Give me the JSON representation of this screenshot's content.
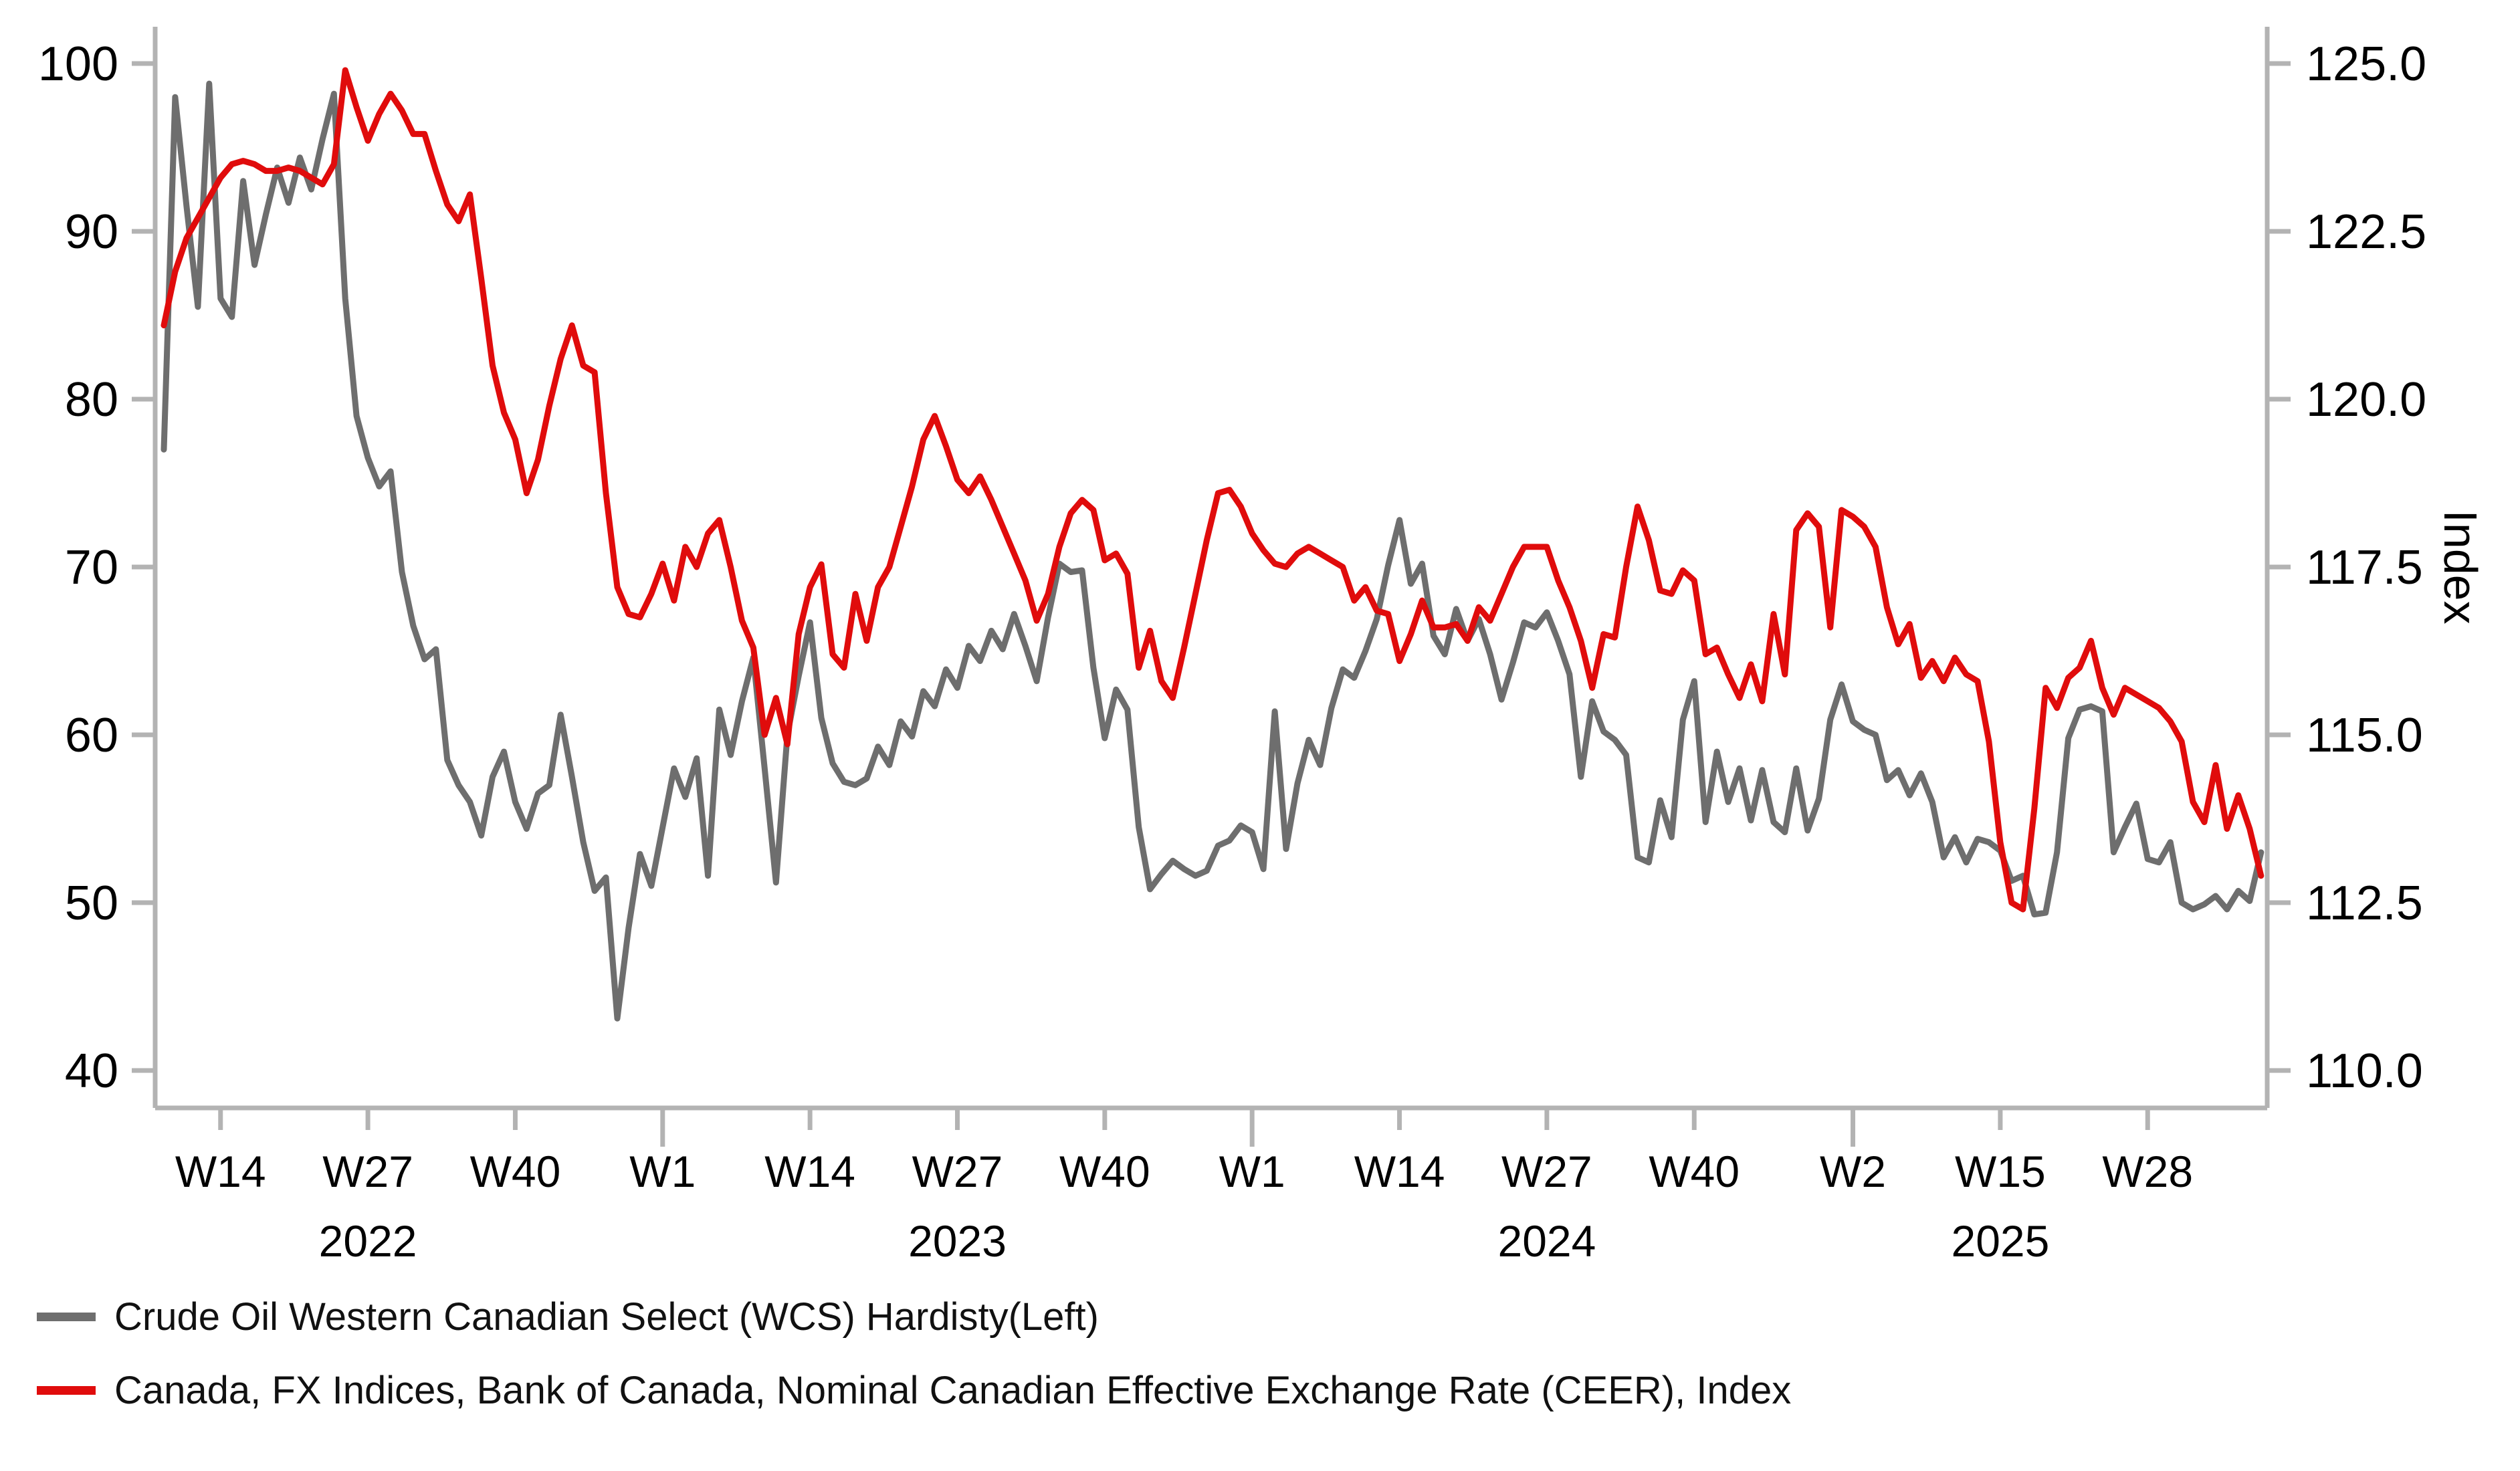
{
  "chart_data": {
    "type": "line",
    "title": "",
    "grid": false,
    "legend_position": "bottom-left",
    "x_axis": {
      "unit": "ISO week",
      "start_week_cont": 9,
      "weeks_total": 186,
      "ticks": [
        {
          "label": "W14",
          "cont": 14,
          "year_boundary": false
        },
        {
          "label": "W27",
          "cont": 27,
          "year_boundary": false
        },
        {
          "label": "W40",
          "cont": 40,
          "year_boundary": false
        },
        {
          "label": "W1",
          "cont": 53,
          "year_boundary": true
        },
        {
          "label": "W14",
          "cont": 66,
          "year_boundary": false
        },
        {
          "label": "W27",
          "cont": 79,
          "year_boundary": false
        },
        {
          "label": "W40",
          "cont": 92,
          "year_boundary": false
        },
        {
          "label": "W1",
          "cont": 105,
          "year_boundary": true
        },
        {
          "label": "W14",
          "cont": 118,
          "year_boundary": false
        },
        {
          "label": "W27",
          "cont": 131,
          "year_boundary": false
        },
        {
          "label": "W40",
          "cont": 144,
          "year_boundary": false
        },
        {
          "label": "W2",
          "cont": 158,
          "year_boundary": true
        },
        {
          "label": "W15",
          "cont": 171,
          "year_boundary": false
        },
        {
          "label": "W28",
          "cont": 184,
          "year_boundary": false
        }
      ],
      "year_labels": [
        {
          "text": "2022",
          "cont": 27
        },
        {
          "text": "2023",
          "cont": 79
        },
        {
          "text": "2024",
          "cont": 131
        },
        {
          "text": "2025",
          "cont": 171
        }
      ]
    },
    "y_left": {
      "title": "",
      "min": 40,
      "max": 100,
      "ticks": [
        100,
        90,
        80,
        70,
        60,
        50,
        40
      ]
    },
    "y_right": {
      "title": "Index",
      "min": 110,
      "max": 125,
      "ticks": [
        "125.0",
        "122.5",
        "120.0",
        "117.5",
        "115.0",
        "112.5",
        "110.0"
      ]
    },
    "axis_color": "#b3b3b3",
    "series": [
      {
        "name": "WCS",
        "legend_label": "Crude Oil Western Canadian Select (WCS) Hardisty(Left)",
        "color": "#6e6e6e",
        "axis": "left",
        "values": [
          77.0,
          98.0,
          91.5,
          85.5,
          98.8,
          86.0,
          84.9,
          93.0,
          88.0,
          91.0,
          93.8,
          91.7,
          94.4,
          92.5,
          95.5,
          98.2,
          86.0,
          79.0,
          76.5,
          74.8,
          75.7,
          69.7,
          66.5,
          64.5,
          65.1,
          58.5,
          57.0,
          56.0,
          54.0,
          57.5,
          59.0,
          56.0,
          54.4,
          56.5,
          57.0,
          61.2,
          57.5,
          53.6,
          50.7,
          51.5,
          43.1,
          48.5,
          52.9,
          51.0,
          54.5,
          58.0,
          56.3,
          58.6,
          51.6,
          61.5,
          58.8,
          62.0,
          64.6,
          58.0,
          51.2,
          60.0,
          63.5,
          66.7,
          61.0,
          58.3,
          57.2,
          57.0,
          57.4,
          59.3,
          58.2,
          60.8,
          59.9,
          62.6,
          61.7,
          63.9,
          62.8,
          65.3,
          64.4,
          66.2,
          65.1,
          67.2,
          65.3,
          63.2,
          67.0,
          70.2,
          69.7,
          69.8,
          64.0,
          59.8,
          62.7,
          61.5,
          54.5,
          50.8,
          51.7,
          52.5,
          52.0,
          51.6,
          51.9,
          53.4,
          53.7,
          54.6,
          54.2,
          52.0,
          61.4,
          53.2,
          57.1,
          59.7,
          58.2,
          61.6,
          63.9,
          63.4,
          65.0,
          66.9,
          70.1,
          72.8,
          69.0,
          70.2,
          65.9,
          64.8,
          67.5,
          65.6,
          66.9,
          64.8,
          62.1,
          64.3,
          66.7,
          66.4,
          67.3,
          65.6,
          63.6,
          57.5,
          62.0,
          60.2,
          59.7,
          58.8,
          52.7,
          52.4,
          56.1,
          53.9,
          60.9,
          63.2,
          54.8,
          59.0,
          56.0,
          58.0,
          54.9,
          57.9,
          54.8,
          54.2,
          58.0,
          54.3,
          56.2,
          60.9,
          63.0,
          60.8,
          60.3,
          60.0,
          57.3,
          57.9,
          56.4,
          57.7,
          56.0,
          52.7,
          53.9,
          52.4,
          53.8,
          53.6,
          53.1,
          51.3,
          51.6,
          49.3,
          49.4,
          53.0,
          59.8,
          61.5,
          61.7,
          61.4,
          53.0,
          54.5,
          55.9,
          52.6,
          52.4,
          53.6,
          50.0,
          49.6,
          49.9,
          50.4,
          49.6,
          50.7,
          50.1,
          53.0
        ]
      },
      {
        "name": "CEER",
        "legend_label": "Canada, FX Indices, Bank of Canada, Nominal Canadian Effective Exchange Rate (CEER), Index",
        "color": "#e00c0c",
        "axis": "right",
        "values": [
          121.1,
          121.9,
          122.4,
          122.7,
          123.0,
          123.3,
          123.5,
          123.55,
          123.5,
          123.4,
          123.4,
          123.45,
          123.4,
          123.3,
          123.2,
          123.5,
          124.9,
          124.35,
          123.85,
          124.25,
          124.55,
          124.3,
          123.95,
          123.95,
          123.4,
          122.9,
          122.65,
          123.05,
          121.8,
          120.5,
          119.8,
          119.4,
          118.6,
          119.1,
          119.9,
          120.6,
          121.1,
          120.5,
          120.4,
          118.6,
          117.2,
          116.8,
          116.75,
          117.1,
          117.55,
          117.0,
          117.8,
          117.5,
          118.0,
          118.2,
          117.5,
          116.7,
          116.3,
          115.0,
          115.55,
          114.86,
          116.5,
          117.2,
          117.54,
          116.2,
          116.0,
          117.1,
          116.4,
          117.2,
          117.5,
          118.1,
          118.7,
          119.4,
          119.75,
          119.3,
          118.8,
          118.6,
          118.85,
          118.5,
          118.1,
          117.7,
          117.3,
          116.7,
          117.1,
          117.8,
          118.3,
          118.5,
          118.35,
          117.6,
          117.7,
          117.4,
          116.0,
          116.55,
          115.8,
          115.55,
          116.3,
          117.1,
          117.9,
          118.6,
          118.65,
          118.4,
          118.0,
          117.75,
          117.55,
          117.5,
          117.7,
          117.8,
          117.7,
          117.6,
          117.5,
          117.0,
          117.2,
          116.85,
          116.8,
          116.1,
          116.5,
          117.0,
          116.6,
          116.6,
          116.65,
          116.4,
          116.9,
          116.7,
          117.1,
          117.5,
          117.8,
          117.8,
          117.8,
          117.3,
          116.9,
          116.4,
          115.7,
          116.5,
          116.45,
          117.5,
          118.4,
          117.9,
          117.15,
          117.1,
          117.45,
          117.3,
          116.2,
          116.3,
          115.9,
          115.55,
          116.05,
          115.5,
          116.8,
          115.9,
          118.05,
          118.3,
          118.1,
          116.6,
          118.35,
          118.25,
          118.1,
          117.8,
          116.9,
          116.35,
          116.65,
          115.85,
          116.1,
          115.8,
          116.15,
          115.9,
          115.8,
          114.9,
          113.4,
          112.5,
          112.4,
          113.9,
          115.7,
          115.4,
          115.85,
          116.0,
          116.4,
          115.7,
          115.3,
          115.7,
          115.6,
          115.5,
          115.4,
          115.2,
          114.9,
          114.0,
          113.7,
          114.55,
          113.6,
          114.1,
          113.6,
          112.9
        ]
      }
    ]
  }
}
